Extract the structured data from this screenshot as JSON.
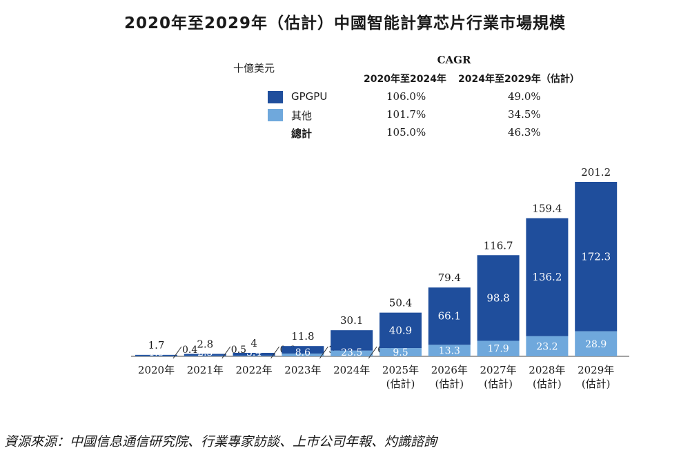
{
  "title": "2020年至2029年（估計）中國智能計算芯片行業市場規模",
  "unit": "十億美元",
  "cagr": {
    "heading": "CAGR",
    "period1": "2020年至2024年",
    "period2": "2024年至2029年（估計）",
    "rows": [
      {
        "label": "GPGPU",
        "p1": "106.0%",
        "p2": "49.0%"
      },
      {
        "label": "其他",
        "p1": "101.7%",
        "p2": "34.5%"
      },
      {
        "label": "總計",
        "p1": "105.0%",
        "p2": "46.3%"
      }
    ]
  },
  "colors": {
    "gpgpu": "#1f4e9c",
    "other": "#6fa8dc"
  },
  "chart_data": {
    "type": "bar",
    "stacked": true,
    "categories": [
      "2020年",
      "2021年",
      "2022年",
      "2023年",
      "2024年",
      "2025年\n(估計)",
      "2026年\n(估計)",
      "2027年\n(估計)",
      "2028年\n(估計)",
      "2029年\n(估計)"
    ],
    "series": [
      {
        "name": "GPGPU",
        "values": [
          1.3,
          2.3,
          3.4,
          8.6,
          23.5,
          40.9,
          66.1,
          98.8,
          136.2,
          172.3
        ]
      },
      {
        "name": "其他",
        "values": [
          0.4,
          0.5,
          0.6,
          3.2,
          6.6,
          9.5,
          13.3,
          17.9,
          23.2,
          28.9
        ]
      }
    ],
    "totals": [
      1.7,
      2.8,
      4.0,
      11.8,
      30.1,
      50.4,
      79.4,
      116.7,
      159.4,
      201.2
    ],
    "ylim": [
      0,
      201.2
    ]
  },
  "footer": "資源來源：中國信息通信研究院、行業專家訪談、上市公司年報、灼識諮詢"
}
